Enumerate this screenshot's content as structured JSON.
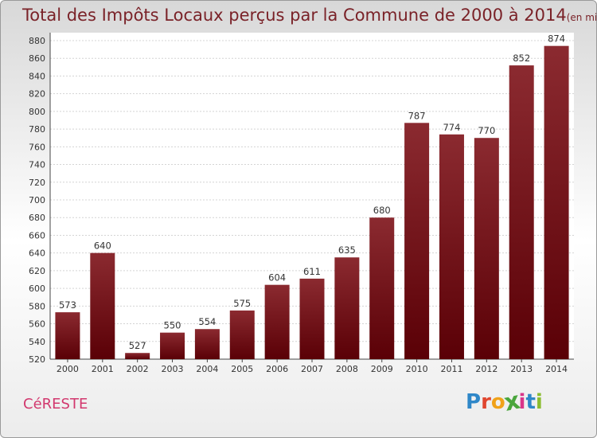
{
  "chart_data": {
    "type": "bar",
    "title": "Total des Impôts Locaux perçus par la Commune de 2000 à 2014",
    "unit_label": "(en milliers d'€)",
    "categories": [
      "2000",
      "2001",
      "2002",
      "2003",
      "2004",
      "2005",
      "2006",
      "2007",
      "2008",
      "2009",
      "2010",
      "2011",
      "2012",
      "2013",
      "2014"
    ],
    "values": [
      573,
      640,
      527,
      550,
      554,
      575,
      604,
      611,
      635,
      680,
      787,
      774,
      770,
      852,
      874
    ],
    "ylim": [
      520,
      880
    ],
    "ytick_step": 20,
    "grid": true,
    "xlabel": "",
    "ylabel": ""
  },
  "commune": "CéRESTE",
  "brand": {
    "letters": [
      "P",
      "r",
      "o",
      "x",
      "i",
      "t",
      "i"
    ],
    "colors": [
      "#2f87c8",
      "#e0462f",
      "#f0a21a",
      "#4aa63c",
      "#d9358a",
      "#2f87c8",
      "#8bbd2f"
    ]
  },
  "colors": {
    "bar_dark": "#5a0006",
    "bar_light": "#8b2a30",
    "title": "#7a2228",
    "commune": "#d2386e"
  }
}
